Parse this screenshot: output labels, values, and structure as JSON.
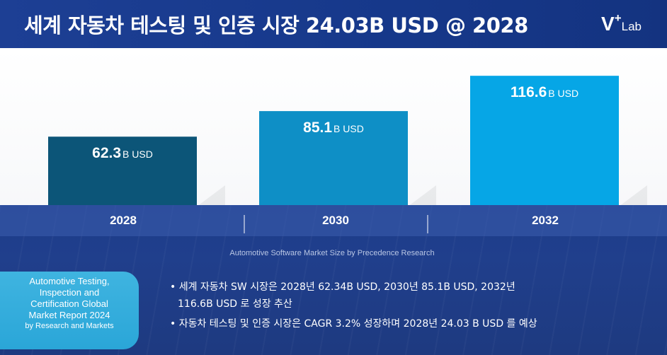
{
  "header": {
    "title": "세계 자동차 테스팅 및 인증 시장 24.03B USD @ 2028",
    "logo": {
      "v": "V",
      "plus": "+",
      "lab": "Lab"
    }
  },
  "chart_data": {
    "type": "bar",
    "categories": [
      "2028",
      "2030",
      "2032"
    ],
    "values": [
      62.3,
      85.1,
      116.6
    ],
    "value_unit": "B USD",
    "data_labels": [
      "62.3",
      "85.1",
      "116.6"
    ],
    "title": "",
    "xlabel": "",
    "ylabel": "",
    "ylim": [
      0,
      135
    ],
    "grid": false,
    "legend": "none",
    "colors": [
      "#0c5578",
      "#0e8fc6",
      "#06a6e6"
    ]
  },
  "source_note": "Automotive Software  Market Size by Precedence Research",
  "badge": {
    "lines": [
      "Automotive Testing,",
      "Inspection and",
      "Certification Global",
      "Market Report 2024"
    ],
    "by": "by Research and Markets"
  },
  "bullets": {
    "first_line1": "• 세계 자동차 SW 시장은 2028년 62.34B USD, 2030년 85.1B USD, 2032년",
    "first_line2": "116.6B USD 로 성장 추산",
    "second": "• 자동차 테스팅 및 인증 시장은 CAGR 3.2% 성장하며 2028년 24.03 B USD 를 예상"
  },
  "colors": {
    "header_bg": "#1d3f94",
    "bottom_bg": "#1f3c88",
    "badge_bg": "#34ade0"
  }
}
